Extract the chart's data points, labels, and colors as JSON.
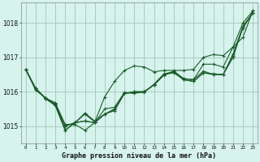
{
  "title": "Graphe pression niveau de la mer (hPa)",
  "background_color": "#d6f3ee",
  "grid_color": "#aaccbb",
  "line_color": "#1a5c28",
  "xlim": [
    -0.5,
    23.5
  ],
  "ylim": [
    1014.5,
    1018.6
  ],
  "yticks": [
    1015,
    1016,
    1017,
    1018
  ],
  "xtick_labels": [
    "0",
    "1",
    "2",
    "3",
    "4",
    "5",
    "6",
    "7",
    "8",
    "9",
    "10",
    "11",
    "12",
    "13",
    "14",
    "15",
    "16",
    "17",
    "18",
    "19",
    "20",
    "21",
    "22",
    "23"
  ],
  "series": [
    [
      1016.65,
      1016.1,
      1015.8,
      1015.6,
      1015.0,
      1015.1,
      1015.15,
      1015.1,
      1015.35,
      1015.45,
      1015.95,
      1016.0,
      1016.0,
      1016.2,
      1016.5,
      1016.55,
      1016.35,
      1016.3,
      1016.55,
      1016.5,
      1016.5,
      1017.05,
      1017.85,
      1018.3
    ],
    [
      1016.65,
      1016.1,
      1015.8,
      1015.65,
      1015.0,
      1015.1,
      1015.15,
      1015.1,
      1015.35,
      1015.5,
      1015.95,
      1016.0,
      1016.0,
      1016.2,
      1016.5,
      1016.58,
      1016.38,
      1016.35,
      1016.6,
      1016.5,
      1016.5,
      1017.1,
      1017.9,
      1018.3
    ],
    [
      1016.65,
      1016.1,
      1015.82,
      1015.68,
      1015.05,
      1015.05,
      1014.88,
      1015.1,
      1015.5,
      1015.55,
      1015.98,
      1015.95,
      1016.0,
      1016.2,
      1016.48,
      1016.6,
      1016.38,
      1016.35,
      1016.8,
      1016.8,
      1016.72,
      1017.3,
      1018.0,
      1018.35
    ],
    [
      1016.65,
      1016.1,
      1015.82,
      1015.6,
      1014.88,
      1015.1,
      1015.38,
      1015.15,
      1015.35,
      1015.48,
      1015.95,
      1015.98,
      1015.98,
      1016.22,
      1016.52,
      1016.58,
      1016.35,
      1016.3,
      1016.55,
      1016.52,
      1016.5,
      1017.0,
      1017.88,
      1018.28
    ]
  ],
  "series_highlight": [
    1016.65,
    1016.05,
    1015.82,
    1015.62,
    1014.88,
    1015.1,
    1015.35,
    1015.12,
    1015.85,
    1016.3,
    1016.62,
    1016.75,
    1016.72,
    1016.58,
    1016.62,
    1016.62,
    1016.62,
    1016.65,
    1017.0,
    1017.08,
    1017.05,
    1017.3,
    1017.58,
    1018.35
  ]
}
